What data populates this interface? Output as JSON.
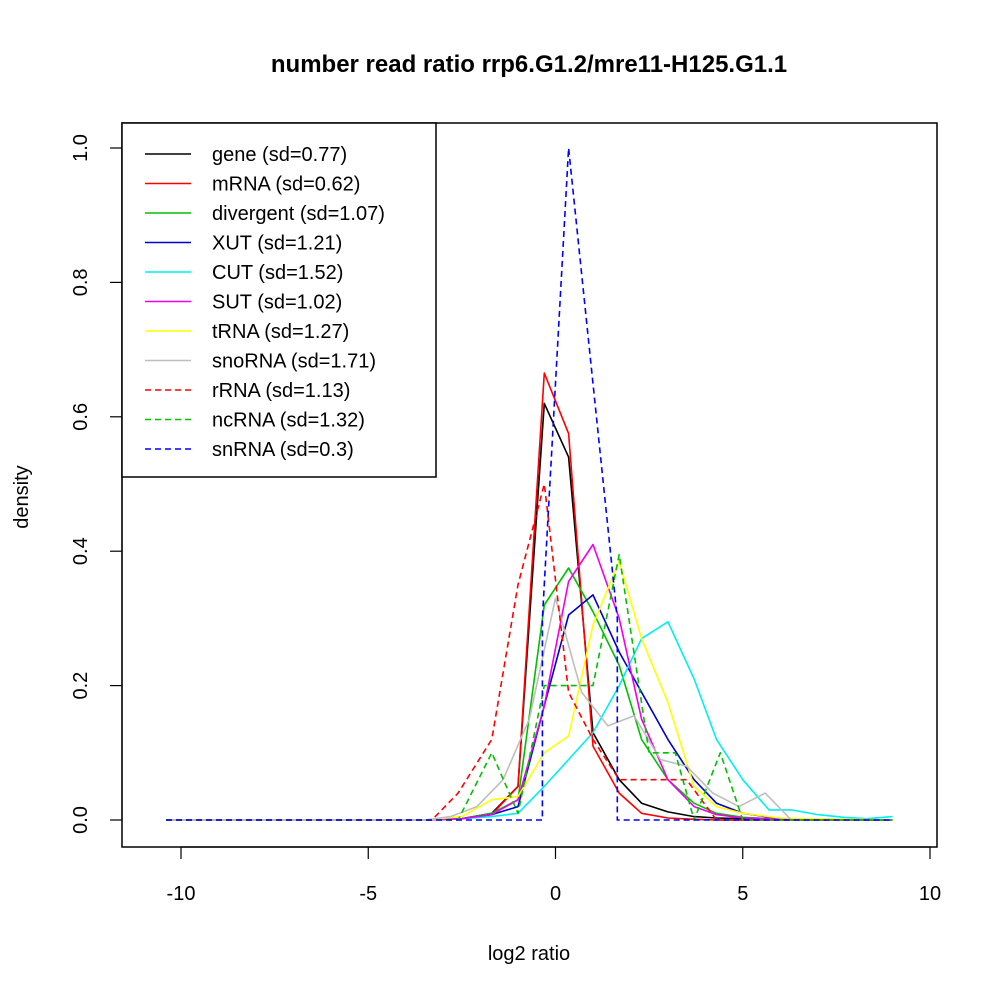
{
  "chart_data": {
    "type": "line",
    "title": "number read ratio rrp6.G1.2/mre11-H125.G1.1",
    "xlabel": "log2 ratio",
    "ylabel": "density",
    "xlim": [
      -11.5,
      10.2
    ],
    "ylim": [
      -0.04,
      1.04
    ],
    "xticks": [
      -10,
      -5,
      0,
      5,
      10
    ],
    "xtick_labels": [
      "-10",
      "-5",
      "0",
      "5",
      "10"
    ],
    "yticks": [
      0.0,
      0.2,
      0.4,
      0.6,
      0.8,
      1.0
    ],
    "ytick_labels": [
      "0.0",
      "0.2",
      "0.4",
      "0.6",
      "0.8",
      "1.0"
    ],
    "grid": false,
    "legend_position": "top-left",
    "series": [
      {
        "name": "gene (sd=0.77)",
        "color": "#000000",
        "dash": "solid",
        "x": [
          -10.4,
          -3.5,
          -2.5,
          -1.7,
          -1.0,
          -0.3,
          0.35,
          1.0,
          1.7,
          2.3,
          3.0,
          3.7,
          4.3,
          5.0,
          6.0,
          9.0
        ],
        "y": [
          0,
          0,
          0.002,
          0.01,
          0.05,
          0.62,
          0.54,
          0.13,
          0.06,
          0.025,
          0.012,
          0.005,
          0.003,
          0.002,
          0.001,
          0
        ]
      },
      {
        "name": "mRNA (sd=0.62)",
        "color": "#ff0000",
        "dash": "solid",
        "x": [
          -10.4,
          -3.5,
          -2.5,
          -1.7,
          -1.0,
          -0.3,
          0.35,
          1.0,
          1.7,
          2.3,
          3.0,
          3.7,
          4.3,
          5.0,
          9.0
        ],
        "y": [
          0,
          0,
          0.002,
          0.008,
          0.05,
          0.665,
          0.575,
          0.11,
          0.04,
          0.01,
          0.003,
          0.001,
          0,
          0,
          0
        ]
      },
      {
        "name": "divergent (sd=1.07)",
        "color": "#00c000",
        "dash": "solid",
        "x": [
          -10.4,
          -3.5,
          -2.5,
          -1.7,
          -1.0,
          -0.3,
          0.35,
          1.0,
          1.7,
          2.3,
          3.0,
          3.7,
          4.3,
          5.0,
          6.0,
          9.0
        ],
        "y": [
          0,
          0,
          0.002,
          0.01,
          0.03,
          0.32,
          0.375,
          0.31,
          0.23,
          0.12,
          0.06,
          0.025,
          0.01,
          0.004,
          0.001,
          0
        ]
      },
      {
        "name": "XUT (sd=1.21)",
        "color": "#0000cc",
        "dash": "solid",
        "x": [
          -10.4,
          -3.5,
          -2.5,
          -1.7,
          -1.0,
          -0.3,
          0.35,
          1.0,
          1.7,
          2.3,
          3.0,
          3.7,
          4.3,
          5.0,
          6.0,
          9.0
        ],
        "y": [
          0,
          0,
          0.002,
          0.008,
          0.02,
          0.17,
          0.305,
          0.335,
          0.25,
          0.19,
          0.12,
          0.06,
          0.025,
          0.01,
          0.002,
          0
        ]
      },
      {
        "name": "CUT (sd=1.52)",
        "color": "#00eeee",
        "dash": "solid",
        "x": [
          -10.4,
          -3.5,
          -2.5,
          -1.7,
          -1.0,
          -0.3,
          0.35,
          1.0,
          1.7,
          2.3,
          3.0,
          3.7,
          4.3,
          5.0,
          5.7,
          6.3,
          7.0,
          7.7,
          8.3,
          9.0
        ],
        "y": [
          0,
          0,
          0.002,
          0.005,
          0.01,
          0.05,
          0.09,
          0.13,
          0.2,
          0.27,
          0.295,
          0.21,
          0.12,
          0.06,
          0.015,
          0.015,
          0.008,
          0.004,
          0.002,
          0.005
        ]
      },
      {
        "name": "SUT (sd=1.02)",
        "color": "#ee00ee",
        "dash": "solid",
        "x": [
          -10.4,
          -3.5,
          -2.5,
          -1.7,
          -1.0,
          -0.3,
          0.35,
          1.0,
          1.7,
          2.3,
          3.0,
          3.7,
          4.3,
          5.0,
          9.0
        ],
        "y": [
          0,
          0,
          0.002,
          0.008,
          0.03,
          0.17,
          0.355,
          0.41,
          0.3,
          0.15,
          0.06,
          0.02,
          0.008,
          0.003,
          0
        ]
      },
      {
        "name": "tRNA (sd=1.27)",
        "color": "#ffff00",
        "dash": "solid",
        "x": [
          -10.4,
          -3.5,
          -2.5,
          -1.7,
          -1.0,
          -0.3,
          0.35,
          1.0,
          1.7,
          2.3,
          3.0,
          3.7,
          4.3,
          5.0,
          6.0,
          9.0
        ],
        "y": [
          0,
          0,
          0.005,
          0.03,
          0.035,
          0.1,
          0.125,
          0.29,
          0.385,
          0.27,
          0.175,
          0.05,
          0.02,
          0.01,
          0.003,
          0
        ]
      },
      {
        "name": "snoRNA (sd=1.71)",
        "color": "#bebebe",
        "dash": "solid",
        "x": [
          -10.4,
          -3.5,
          -2.8,
          -2.1,
          -1.4,
          -0.7,
          0.0,
          0.7,
          1.4,
          2.1,
          2.8,
          3.5,
          4.2,
          4.9,
          5.6,
          6.3,
          9.0
        ],
        "y": [
          0,
          0,
          0.005,
          0.02,
          0.06,
          0.15,
          0.33,
          0.19,
          0.14,
          0.155,
          0.09,
          0.08,
          0.04,
          0.02,
          0.04,
          0,
          0
        ]
      },
      {
        "name": "rRNA (sd=1.13)",
        "color": "#ff0000",
        "dash": "dashed",
        "x": [
          -10.4,
          -3.3,
          -2.6,
          -1.7,
          -1.0,
          -0.3,
          0.35,
          1.0,
          1.7,
          2.3,
          3.0,
          3.5,
          4.3,
          9.0
        ],
        "y": [
          0,
          0,
          0.04,
          0.12,
          0.35,
          0.5,
          0.19,
          0.12,
          0.06,
          0.06,
          0.06,
          0.06,
          0,
          0
        ]
      },
      {
        "name": "ncRNA (sd=1.32)",
        "color": "#00c000",
        "dash": "dashed",
        "x": [
          -10.4,
          -2.6,
          -1.7,
          -1.0,
          -0.3,
          0.35,
          1.0,
          1.7,
          2.5,
          3.2,
          3.7,
          4.4,
          5.0,
          9.0
        ],
        "y": [
          0,
          0,
          0.1,
          0.01,
          0.2,
          0.2,
          0.2,
          0.395,
          0.1,
          0.1,
          0,
          0.1,
          0,
          0
        ]
      },
      {
        "name": "snRNA (sd=0.3)",
        "color": "#0000ff",
        "dash": "dashed",
        "x": [
          -10.4,
          -0.35,
          -0.35,
          0.35,
          1.65,
          1.65,
          9.0
        ],
        "y": [
          0,
          0,
          0.3,
          1.0,
          0.3,
          0,
          0
        ]
      }
    ]
  }
}
